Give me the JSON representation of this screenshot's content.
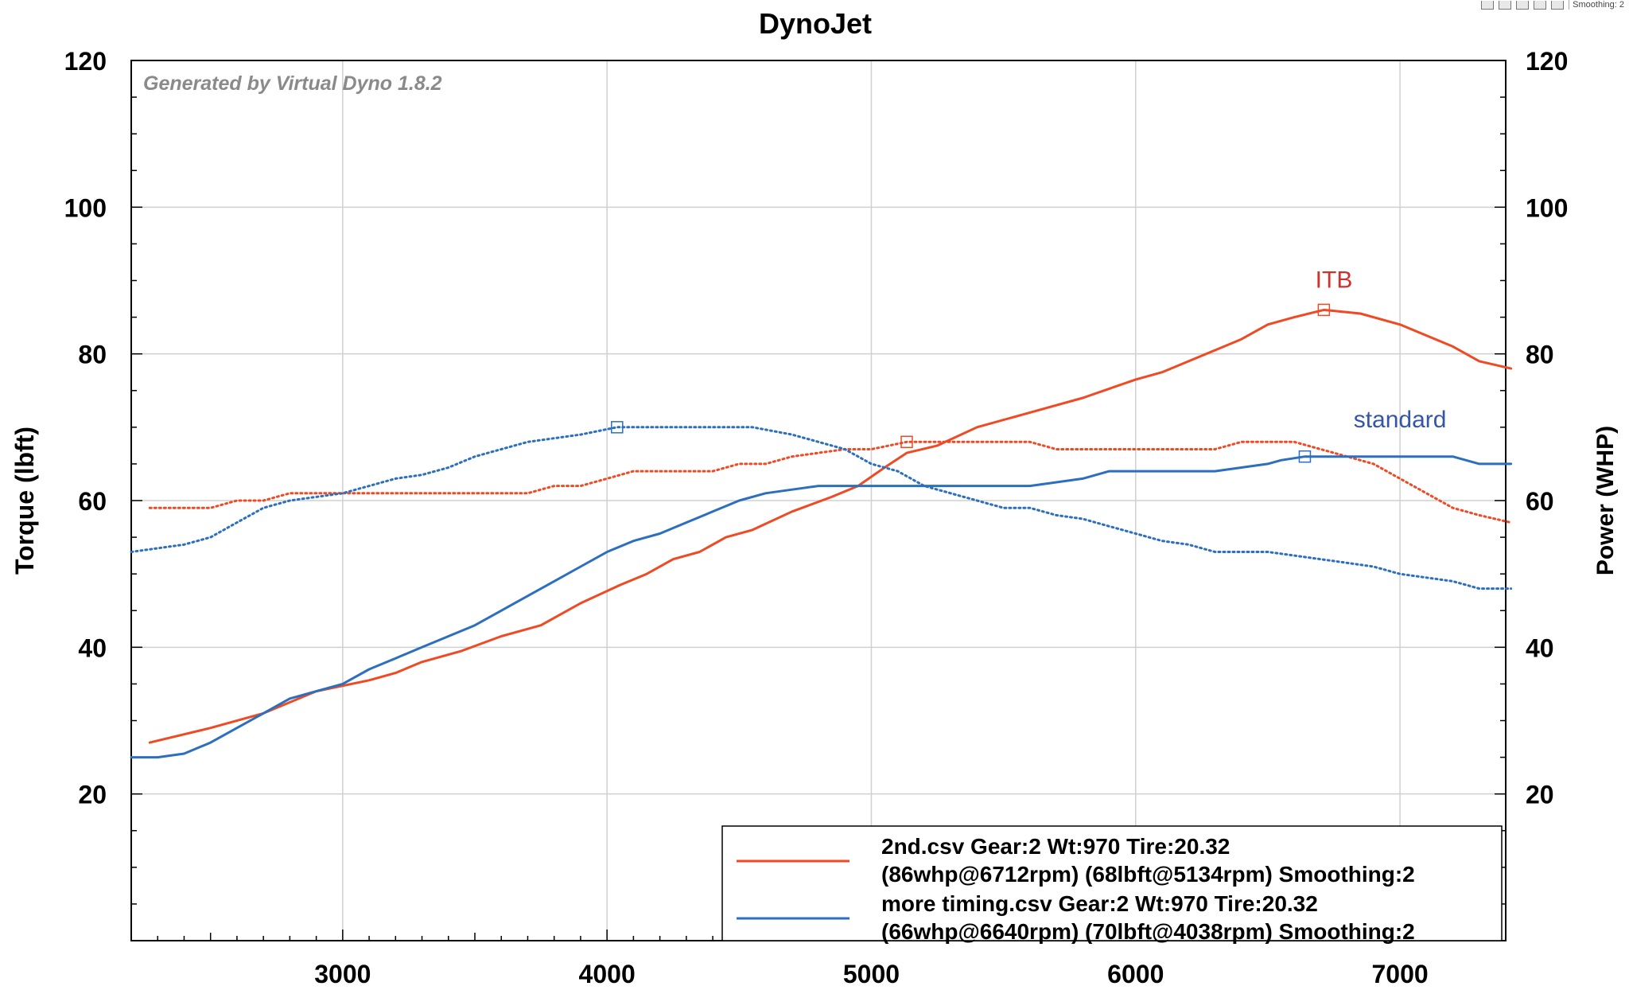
{
  "toolbar": {
    "icons": [
      "zoom-icon",
      "chart-type-icon",
      "copy-icon",
      "save-icon",
      "print-icon"
    ],
    "smoothing_label": "Smoothing: 2"
  },
  "chart_data": {
    "type": "line",
    "title": "DynoJet",
    "watermark": "Generated by Virtual Dyno 1.8.2",
    "xlabel": "",
    "ylabel": "Torque (lbft)",
    "y2label": "Power (WHP)",
    "xlim": [
      2200,
      7400
    ],
    "ylim": [
      0,
      120
    ],
    "y2lim": [
      0,
      120
    ],
    "xticks": [
      3000,
      4000,
      5000,
      6000,
      7000
    ],
    "yticks": [
      20,
      40,
      60,
      80,
      100,
      120
    ],
    "grid": true,
    "legend_position": "bottom-right",
    "legend": [
      {
        "line1": "2nd.csv Gear:2 Wt:970 Tire:20.32",
        "line2": "(86whp@6712rpm) (68lbft@5134rpm) Smoothing:2",
        "color": "#ef4a23"
      },
      {
        "line1": "more timing.csv Gear:2 Wt:970 Tire:20.32",
        "line2": "(66whp@6640rpm) (70lbft@4038rpm) Smoothing:2",
        "color": "#2c6fbe"
      }
    ],
    "annotations": [
      {
        "text": "ITB",
        "x": 6750,
        "y": 89,
        "color": "#d0312d"
      },
      {
        "text": "standard",
        "x": 7000,
        "y": 70,
        "color": "#3456a8"
      }
    ],
    "series": [
      {
        "name": "2nd.csv power (WHP)",
        "color": "#ef4a23",
        "style": "solid",
        "x": [
          2270,
          2500,
          2700,
          2900,
          3100,
          3200,
          3300,
          3450,
          3600,
          3750,
          3900,
          4050,
          4150,
          4250,
          4350,
          4450,
          4550,
          4700,
          4850,
          4950,
          5050,
          5134,
          5250,
          5400,
          5600,
          5800,
          6000,
          6100,
          6300,
          6400,
          6500,
          6600,
          6712,
          6850,
          7000,
          7200,
          7300,
          7420
        ],
        "y": [
          27,
          29,
          31,
          34,
          35.5,
          36.5,
          38,
          39.5,
          41.5,
          43,
          46,
          48.5,
          50,
          52,
          53,
          55,
          56,
          58.5,
          60.5,
          62,
          64.5,
          66.5,
          67.5,
          70,
          72,
          74,
          76.5,
          77.5,
          80.5,
          82,
          84,
          85,
          86,
          85.5,
          84,
          81,
          79,
          78
        ]
      },
      {
        "name": "2nd.csv torque (lbft)",
        "color": "#ef4a23",
        "style": "dotted",
        "x": [
          2270,
          2400,
          2500,
          2600,
          2700,
          2800,
          3000,
          3200,
          3400,
          3600,
          3700,
          3800,
          3900,
          4000,
          4100,
          4200,
          4300,
          4400,
          4500,
          4600,
          4700,
          4800,
          4900,
          5000,
          5134,
          5300,
          5500,
          5600,
          5700,
          5800,
          6000,
          6200,
          6300,
          6400,
          6500,
          6600,
          6700,
          6800,
          6900,
          7000,
          7100,
          7200,
          7300,
          7420
        ],
        "y": [
          59,
          59,
          59,
          60,
          60,
          61,
          61,
          61,
          61,
          61,
          61,
          62,
          62,
          63,
          64,
          64,
          64,
          64,
          65,
          65,
          66,
          66.5,
          67,
          67,
          68,
          68,
          68,
          68,
          67,
          67,
          67,
          67,
          67,
          68,
          68,
          68,
          67,
          66,
          65,
          63,
          61,
          59,
          58,
          57
        ]
      },
      {
        "name": "more timing.csv power (WHP)",
        "color": "#2c6fbe",
        "style": "solid",
        "x": [
          2200,
          2300,
          2400,
          2500,
          2600,
          2700,
          2800,
          2900,
          3000,
          3100,
          3200,
          3300,
          3400,
          3500,
          3600,
          3700,
          3800,
          3900,
          4000,
          4100,
          4200,
          4300,
          4400,
          4500,
          4600,
          4700,
          4800,
          4900,
          5000,
          5100,
          5200,
          5300,
          5400,
          5500,
          5600,
          5700,
          5800,
          5900,
          6000,
          6100,
          6200,
          6300,
          6400,
          6500,
          6550,
          6640,
          6750,
          6900,
          7000,
          7100,
          7200,
          7300,
          7420
        ],
        "y": [
          25,
          25,
          25.5,
          27,
          29,
          31,
          33,
          34,
          35,
          37,
          38.5,
          40,
          41.5,
          43,
          45,
          47,
          49,
          51,
          53,
          54.5,
          55.5,
          57,
          58.5,
          60,
          61,
          61.5,
          62,
          62,
          62,
          62,
          62,
          62,
          62,
          62,
          62,
          62.5,
          63,
          64,
          64,
          64,
          64,
          64,
          64.5,
          65,
          65.5,
          66,
          66,
          66,
          66,
          66,
          66,
          65,
          65
        ]
      },
      {
        "name": "more timing.csv torque (lbft)",
        "color": "#2c6fbe",
        "style": "dotted",
        "x": [
          2200,
          2300,
          2400,
          2500,
          2600,
          2700,
          2800,
          2900,
          3000,
          3100,
          3200,
          3300,
          3400,
          3500,
          3600,
          3700,
          3800,
          3900,
          4038,
          4200,
          4400,
          4550,
          4700,
          4800,
          4900,
          5000,
          5100,
          5200,
          5300,
          5400,
          5500,
          5600,
          5700,
          5800,
          5900,
          6000,
          6100,
          6200,
          6300,
          6400,
          6500,
          6600,
          6700,
          6800,
          6900,
          7000,
          7100,
          7200,
          7300,
          7420
        ],
        "y": [
          53,
          53.5,
          54,
          55,
          57,
          59,
          60,
          60.5,
          61,
          62,
          63,
          63.5,
          64.5,
          66,
          67,
          68,
          68.5,
          69,
          70,
          70,
          70,
          70,
          69,
          68,
          67,
          65,
          64,
          62,
          61,
          60,
          59,
          59,
          58,
          57.5,
          56.5,
          55.5,
          54.5,
          54,
          53,
          53,
          53,
          52.5,
          52,
          51.5,
          51,
          50,
          49.5,
          49,
          48,
          48
        ]
      }
    ],
    "markers": [
      {
        "x": 6712,
        "y": 86,
        "color": "#ef4a23"
      },
      {
        "x": 5134,
        "y": 68,
        "color": "#ef4a23"
      },
      {
        "x": 6640,
        "y": 66,
        "color": "#2c6fbe"
      },
      {
        "x": 4038,
        "y": 70,
        "color": "#2c6fbe"
      }
    ]
  }
}
